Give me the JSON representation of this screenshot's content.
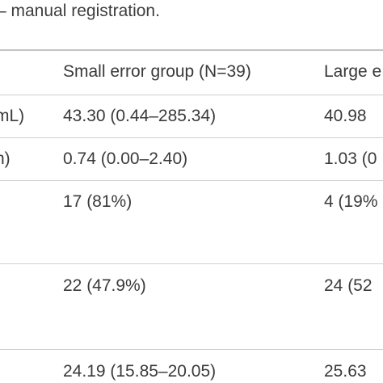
{
  "caption": "– manual registration.",
  "table": {
    "header": {
      "col1": "Small error group (N=39)",
      "col2": "Large e"
    },
    "rows": [
      {
        "label": "mL)",
        "small": "43.30 (0.44–285.34)",
        "large": "40.98"
      },
      {
        "label": "n)",
        "small": "0.74 (0.00–2.40)",
        "large": "1.03 (0"
      },
      {
        "label": "",
        "small": "17 (81%)",
        "large": "4 (19%"
      },
      {
        "label": "",
        "small": "22 (47.9%)",
        "large": "24 (52"
      },
      {
        "label": "",
        "small": "24.19 (15.85–20.05)",
        "large": "25.63"
      }
    ]
  }
}
